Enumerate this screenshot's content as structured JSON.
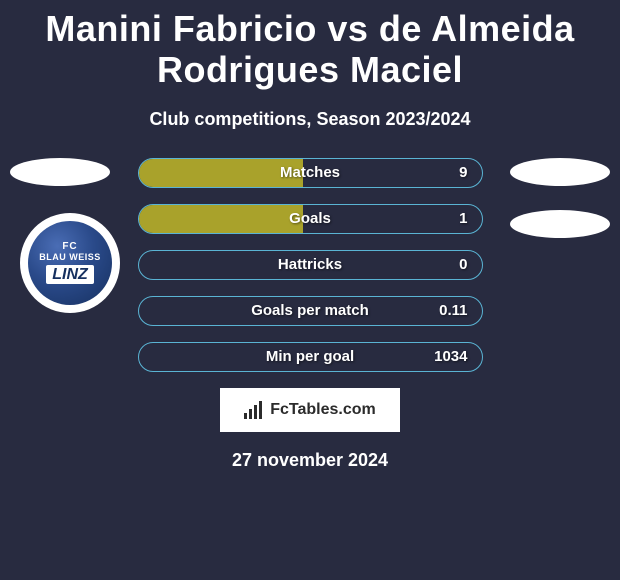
{
  "title": "Manini Fabricio vs de Almeida Rodrigues Maciel",
  "subtitle": "Club competitions, Season 2023/2024",
  "date_text": "27 november 2024",
  "watermark": "FcTables.com",
  "club_logo": {
    "fc": "FC",
    "bw": "BLAU WEISS",
    "linz": "LINZ"
  },
  "colors": {
    "background": "#282b40",
    "bar_fill": "#a9a22b",
    "bar_border": "#5ab4d4",
    "text": "#ffffff",
    "badge_bg": "#ffffff",
    "logo_bg": "#2a4a8a"
  },
  "typography": {
    "title_fontsize": 36,
    "subtitle_fontsize": 18,
    "bar_label_fontsize": 15,
    "date_fontsize": 18
  },
  "badges": {
    "left_top": true,
    "right_top": true,
    "right_second": true
  },
  "stats": [
    {
      "label": "Matches",
      "value": "9",
      "left_pct": 48,
      "right_pct": 0
    },
    {
      "label": "Goals",
      "value": "1",
      "left_pct": 48,
      "right_pct": 0
    },
    {
      "label": "Hattricks",
      "value": "0",
      "left_pct": 0,
      "right_pct": 0
    },
    {
      "label": "Goals per match",
      "value": "0.11",
      "left_pct": 0,
      "right_pct": 0
    },
    {
      "label": "Min per goal",
      "value": "1034",
      "left_pct": 0,
      "right_pct": 0
    }
  ]
}
